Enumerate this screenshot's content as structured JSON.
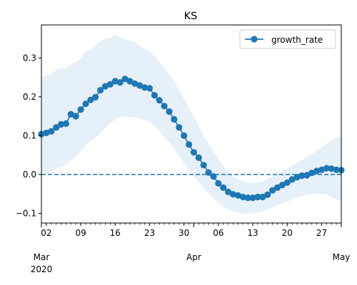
{
  "chart_data": {
    "type": "line",
    "title": "KS",
    "xlabel": "",
    "ylabel": "",
    "x_start": "2020-03-01",
    "x_end": "2020-05-01",
    "ylim": [
      -0.125,
      0.385
    ],
    "y_ticks": [
      -0.1,
      0.0,
      0.1,
      0.2,
      0.3
    ],
    "y_tick_labels": [
      "−0.1",
      "0.0",
      "0.1",
      "0.2",
      "0.3"
    ],
    "x_minor_ticks": [
      "02",
      "09",
      "16",
      "23",
      "30",
      "06",
      "13",
      "20",
      "27"
    ],
    "x_minor_tick_dates": [
      "2020-03-02",
      "2020-03-09",
      "2020-03-16",
      "2020-03-23",
      "2020-03-30",
      "2020-04-06",
      "2020-04-13",
      "2020-04-20",
      "2020-04-27"
    ],
    "x_major_ticks": [
      {
        "date": "2020-03-01",
        "label": "Mar",
        "sublabel": "2020"
      },
      {
        "date": "2020-04-01",
        "label": "Apr",
        "sublabel": ""
      },
      {
        "date": "2020-05-01",
        "label": "May",
        "sublabel": ""
      }
    ],
    "reference_line": {
      "y": 0.0,
      "style": "dashed"
    },
    "legend": {
      "position": "top-right"
    },
    "colors": {
      "series": "#1f77b4",
      "band": "#e6f0f9"
    },
    "series": [
      {
        "name": "growth_rate",
        "dates": [
          "2020-03-01",
          "2020-03-02",
          "2020-03-03",
          "2020-03-04",
          "2020-03-05",
          "2020-03-06",
          "2020-03-07",
          "2020-03-08",
          "2020-03-09",
          "2020-03-10",
          "2020-03-11",
          "2020-03-12",
          "2020-03-13",
          "2020-03-14",
          "2020-03-15",
          "2020-03-16",
          "2020-03-17",
          "2020-03-18",
          "2020-03-19",
          "2020-03-20",
          "2020-03-21",
          "2020-03-22",
          "2020-03-23",
          "2020-03-24",
          "2020-03-25",
          "2020-03-26",
          "2020-03-27",
          "2020-03-28",
          "2020-03-29",
          "2020-03-30",
          "2020-03-31",
          "2020-04-01",
          "2020-04-02",
          "2020-04-03",
          "2020-04-04",
          "2020-04-05",
          "2020-04-06",
          "2020-04-07",
          "2020-04-08",
          "2020-04-09",
          "2020-04-10",
          "2020-04-11",
          "2020-04-12",
          "2020-04-13",
          "2020-04-14",
          "2020-04-15",
          "2020-04-16",
          "2020-04-17",
          "2020-04-18",
          "2020-04-19",
          "2020-04-20",
          "2020-04-21",
          "2020-04-22",
          "2020-04-23",
          "2020-04-24",
          "2020-04-25",
          "2020-04-26",
          "2020-04-27",
          "2020-04-28",
          "2020-04-29",
          "2020-04-30",
          "2020-05-01"
        ],
        "values": [
          0.104,
          0.107,
          0.111,
          0.121,
          0.129,
          0.131,
          0.155,
          0.15,
          0.167,
          0.182,
          0.192,
          0.199,
          0.217,
          0.227,
          0.232,
          0.24,
          0.237,
          0.246,
          0.24,
          0.234,
          0.229,
          0.224,
          0.222,
          0.204,
          0.191,
          0.176,
          0.162,
          0.142,
          0.121,
          0.1,
          0.077,
          0.057,
          0.043,
          0.024,
          0.005,
          -0.005,
          -0.023,
          -0.034,
          -0.045,
          -0.051,
          -0.054,
          -0.058,
          -0.06,
          -0.06,
          -0.058,
          -0.058,
          -0.052,
          -0.041,
          -0.034,
          -0.027,
          -0.021,
          -0.013,
          -0.007,
          -0.003,
          -0.002,
          0.004,
          0.009,
          0.012,
          0.016,
          0.015,
          0.012,
          0.011
        ],
        "band_upper": [
          0.25,
          0.254,
          0.258,
          0.27,
          0.275,
          0.273,
          0.284,
          0.288,
          0.3,
          0.318,
          0.322,
          0.332,
          0.343,
          0.35,
          0.352,
          0.36,
          0.352,
          0.348,
          0.345,
          0.34,
          0.332,
          0.322,
          0.316,
          0.305,
          0.29,
          0.275,
          0.258,
          0.24,
          0.218,
          0.195,
          0.172,
          0.15,
          0.125,
          0.1,
          0.08,
          0.06,
          0.04,
          0.022,
          0.008,
          -0.005,
          -0.012,
          -0.017,
          -0.02,
          -0.022,
          -0.02,
          -0.018,
          -0.012,
          -0.005,
          0.002,
          0.008,
          0.015,
          0.022,
          0.03,
          0.037,
          0.045,
          0.053,
          0.062,
          0.07,
          0.078,
          0.088,
          0.095,
          0.097
        ],
        "band_lower": [
          0.0,
          0.0,
          0.005,
          0.015,
          0.02,
          0.025,
          0.035,
          0.045,
          0.06,
          0.075,
          0.085,
          0.095,
          0.105,
          0.12,
          0.132,
          0.142,
          0.147,
          0.15,
          0.147,
          0.147,
          0.143,
          0.14,
          0.135,
          0.125,
          0.112,
          0.097,
          0.082,
          0.065,
          0.047,
          0.03,
          0.012,
          -0.005,
          -0.02,
          -0.035,
          -0.05,
          -0.062,
          -0.072,
          -0.082,
          -0.09,
          -0.095,
          -0.098,
          -0.1,
          -0.1,
          -0.1,
          -0.097,
          -0.095,
          -0.09,
          -0.085,
          -0.08,
          -0.075,
          -0.07,
          -0.065,
          -0.06,
          -0.055,
          -0.052,
          -0.05,
          -0.05,
          -0.05,
          -0.052,
          -0.058,
          -0.065,
          -0.068
        ]
      }
    ]
  }
}
